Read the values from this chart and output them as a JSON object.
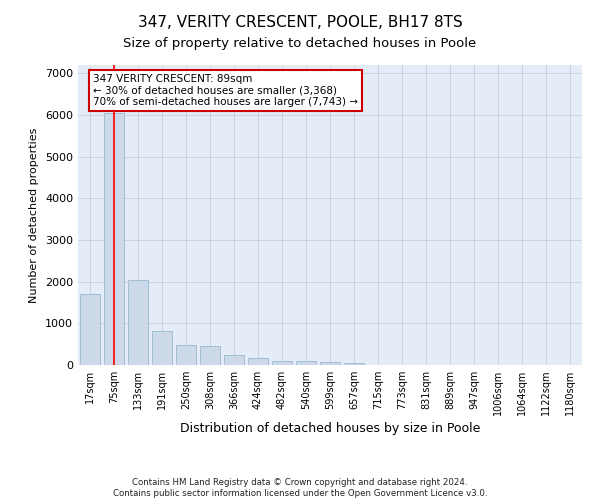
{
  "title": "347, VERITY CRESCENT, POOLE, BH17 8TS",
  "subtitle": "Size of property relative to detached houses in Poole",
  "xlabel": "Distribution of detached houses by size in Poole",
  "ylabel": "Number of detached properties",
  "footnote1": "Contains HM Land Registry data © Crown copyright and database right 2024.",
  "footnote2": "Contains public sector information licensed under the Open Government Licence v3.0.",
  "categories": [
    "17sqm",
    "75sqm",
    "133sqm",
    "191sqm",
    "250sqm",
    "308sqm",
    "366sqm",
    "424sqm",
    "482sqm",
    "540sqm",
    "599sqm",
    "657sqm",
    "715sqm",
    "773sqm",
    "831sqm",
    "889sqm",
    "947sqm",
    "1006sqm",
    "1064sqm",
    "1122sqm",
    "1180sqm"
  ],
  "values": [
    1700,
    6050,
    2050,
    820,
    470,
    460,
    230,
    170,
    90,
    90,
    65,
    50,
    10,
    5,
    2,
    1,
    0,
    0,
    0,
    0,
    0
  ],
  "bar_color": "#ccd9e8",
  "bar_edge_color": "#99b8d0",
  "red_line_x": 1.0,
  "annotation_title": "347 VERITY CRESCENT: 89sqm",
  "annotation_line2": "← 30% of detached houses are smaller (3,368)",
  "annotation_line3": "70% of semi-detached houses are larger (7,743) →",
  "annotation_box_facecolor": "#ffffff",
  "annotation_box_edgecolor": "#cc0000",
  "ylim": [
    0,
    7200
  ],
  "yticks": [
    0,
    1000,
    2000,
    3000,
    4000,
    5000,
    6000,
    7000
  ],
  "grid_color": "#c8d4e4",
  "background_color": "#e4ecf7",
  "title_fontsize": 11,
  "subtitle_fontsize": 9.5,
  "tick_fontsize": 7,
  "ylabel_fontsize": 8,
  "xlabel_fontsize": 9
}
